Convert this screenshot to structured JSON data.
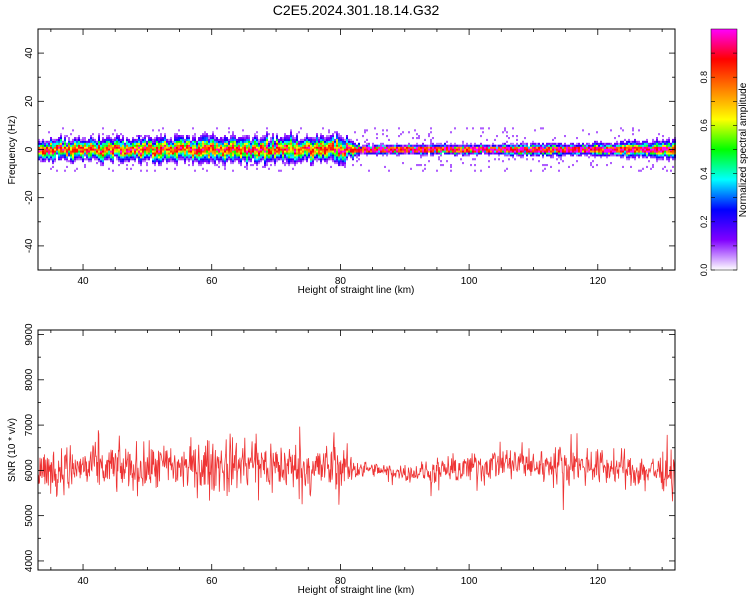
{
  "title": "C2E5.2024.301.18.14.G32",
  "chart_data": [
    {
      "type": "heatmap",
      "xlabel": "Height of straight line (km)",
      "ylabel": "Frequency (Hz)",
      "xlim": [
        33,
        132
      ],
      "ylim": [
        -50,
        50
      ],
      "xticks": [
        40,
        60,
        80,
        100,
        120
      ],
      "xtick_labels": [
        "40",
        "60",
        "80",
        "100",
        "120"
      ],
      "yticks": [
        -40,
        -20,
        0,
        20,
        40
      ],
      "ytick_labels": [
        "-40",
        "-20",
        "0",
        "20",
        "40"
      ],
      "colorbar": {
        "label": "Normalized spectral amplitude",
        "range": [
          0,
          1
        ],
        "ticks": [
          0.0,
          0.2,
          0.4,
          0.6,
          0.8
        ],
        "tick_labels": [
          "0.0",
          "0.2",
          "0.4",
          "0.6",
          "0.8"
        ],
        "colors": [
          "#ffffff",
          "#8000ff",
          "#0000ff",
          "#00ffff",
          "#00ff00",
          "#ffff00",
          "#ff8000",
          "#ff0000",
          "#ff00ff"
        ]
      },
      "band": {
        "center_hz": 0,
        "half_width_hz_by_height": [
          [
            33,
            3
          ],
          [
            45,
            3.5
          ],
          [
            60,
            4
          ],
          [
            70,
            4
          ],
          [
            80,
            4
          ],
          [
            83,
            1.5
          ],
          [
            100,
            1.5
          ],
          [
            120,
            2
          ],
          [
            132,
            3
          ]
        ]
      }
    },
    {
      "type": "line",
      "xlabel": "Height of straight line (km)",
      "ylabel": "SNR (10 * v/v)",
      "xlim": [
        33,
        132
      ],
      "ylim": [
        3800,
        9100
      ],
      "xticks": [
        40,
        60,
        80,
        100,
        120
      ],
      "xtick_labels": [
        "40",
        "60",
        "80",
        "100",
        "120"
      ],
      "yticks": [
        4000,
        5000,
        6000,
        7000,
        8000,
        9000
      ],
      "ytick_labels": [
        "4000",
        "5000",
        "6000",
        "7000",
        "8000",
        "9000"
      ],
      "color": "#ee3333",
      "series_profile": {
        "x": [
          33,
          40,
          50,
          60,
          65,
          70,
          75,
          80,
          83,
          85,
          90,
          95,
          100,
          105,
          110,
          115,
          120,
          125,
          130,
          132
        ],
        "mean": [
          6000,
          6050,
          6050,
          6100,
          6150,
          6100,
          6050,
          6050,
          6050,
          6000,
          5950,
          5950,
          6050,
          6150,
          6100,
          6150,
          6100,
          6000,
          6000,
          6000
        ],
        "amplitude": [
          900,
          900,
          950,
          1100,
          1100,
          1050,
          950,
          1000,
          350,
          300,
          300,
          500,
          650,
          700,
          650,
          750,
          700,
          650,
          700,
          1100
        ]
      }
    }
  ]
}
